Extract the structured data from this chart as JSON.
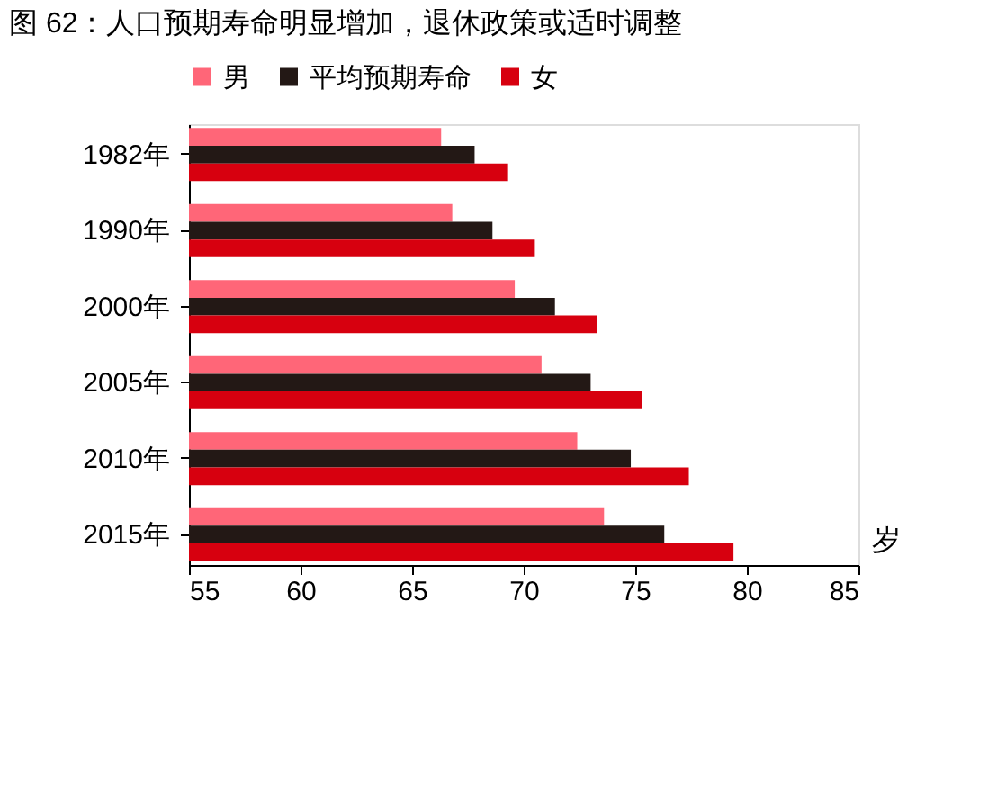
{
  "chart_data": {
    "type": "bar",
    "orientation": "horizontal",
    "title": "图 62：人口预期寿命明显增加，退休政策或适时调整",
    "categories": [
      "1982年",
      "1990年",
      "2000年",
      "2005年",
      "2010年",
      "2015年"
    ],
    "series": [
      {
        "name": "男",
        "color": "#ff6678",
        "values": [
          66.3,
          66.8,
          69.6,
          70.8,
          72.4,
          73.6
        ]
      },
      {
        "name": "平均预期寿命",
        "color": "#231815",
        "values": [
          67.8,
          68.6,
          71.4,
          73.0,
          74.8,
          76.3
        ]
      },
      {
        "name": "女",
        "color": "#d7000f",
        "values": [
          69.3,
          70.5,
          73.3,
          75.3,
          77.4,
          79.4
        ]
      }
    ],
    "xlabel": "岁",
    "xlim": [
      55,
      85
    ],
    "xticks": [
      55,
      60,
      65,
      70,
      75,
      80,
      85
    ],
    "grid": false,
    "legend": "top"
  }
}
